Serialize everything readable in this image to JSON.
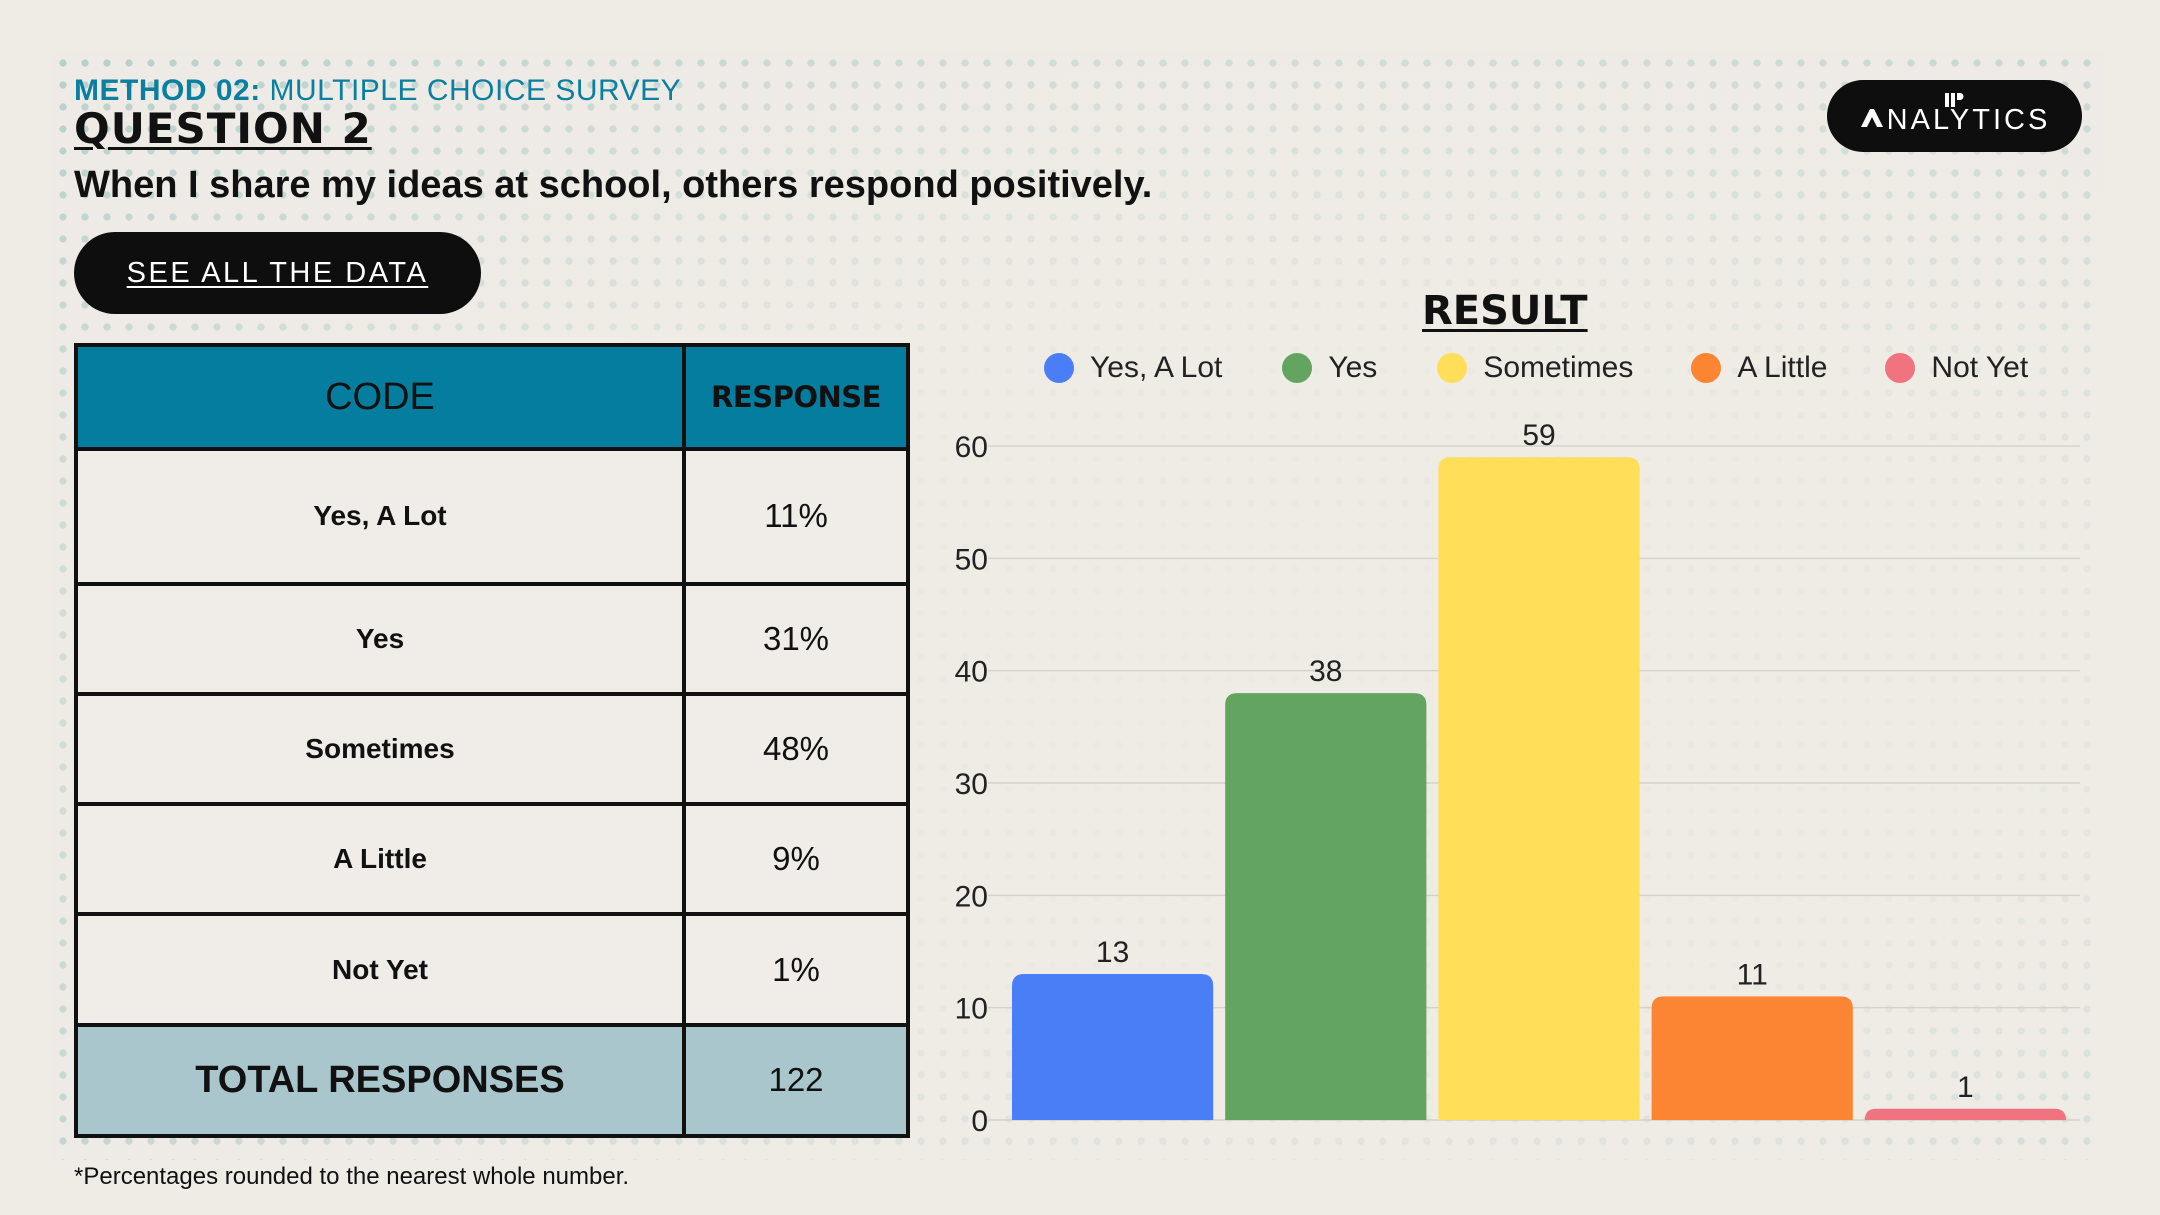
{
  "header": {
    "method_bold": "METHOD 02:",
    "method_rest": " MULTIPLE CHOICE SURVEY",
    "question_number": "QUESTION 2",
    "question_text": "When I share my ideas at school, others respond positively.",
    "see_data_label": "SEE ALL THE DATA"
  },
  "logo": {
    "text": "NALYTICS",
    "icon": "analytics-logo-icon"
  },
  "table": {
    "headers": {
      "code": "CODE",
      "response": "RESPONSE"
    },
    "rows": [
      {
        "code": "Yes, A Lot",
        "response": "11%"
      },
      {
        "code": "Yes",
        "response": "31%"
      },
      {
        "code": "Sometimes",
        "response": "48%"
      },
      {
        "code": "A Little",
        "response": "9%"
      },
      {
        "code": "Not Yet",
        "response": "1%"
      }
    ],
    "total": {
      "label": "TOTAL RESPONSES",
      "value": "122"
    }
  },
  "footnote": "*Percentages rounded to the nearest whole number.",
  "chart_data": {
    "type": "bar",
    "title": "RESULT",
    "categories": [
      "Yes, A Lot",
      "Yes",
      "Sometimes",
      "A Little",
      "Not Yet"
    ],
    "values": [
      13,
      38,
      59,
      11,
      1
    ],
    "colors": [
      "#4a7ef7",
      "#62a460",
      "#ffde5a",
      "#fb8533",
      "#f07480"
    ],
    "ylim": [
      0,
      60
    ],
    "yticks": [
      0,
      10,
      20,
      30,
      40,
      50,
      60
    ],
    "legend": "top",
    "grid": true,
    "xlabel": "",
    "ylabel": ""
  }
}
